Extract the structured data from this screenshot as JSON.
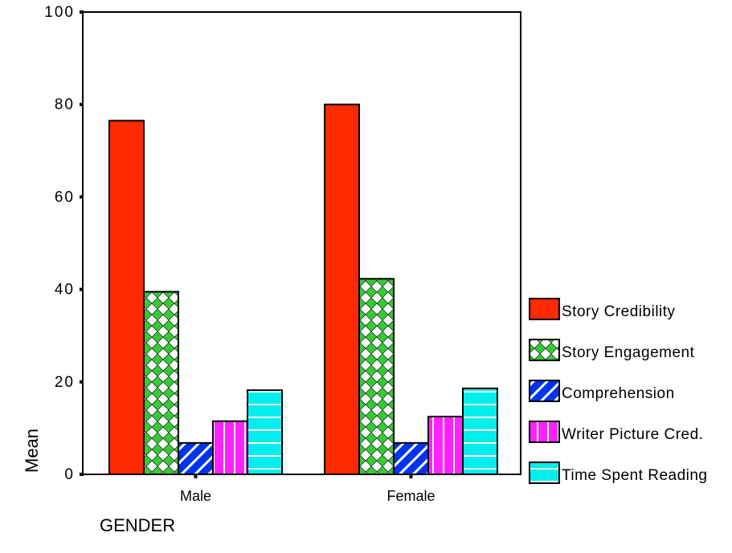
{
  "chart_data": {
    "type": "bar",
    "title": "",
    "xlabel": "GENDER",
    "ylabel": "Mean",
    "ylim": [
      0,
      100
    ],
    "yticks": [
      "0",
      "20",
      "40",
      "60",
      "80",
      "100"
    ],
    "grid": false,
    "legend_position": "right",
    "categories": [
      "Male",
      "Female"
    ],
    "series": [
      {
        "name": "Story Credibility",
        "values": [
          76.5,
          80
        ],
        "color": "#ff2a00",
        "pattern": "solid"
      },
      {
        "name": "Story Engagement",
        "values": [
          39.5,
          42.3
        ],
        "color": "#33cc33",
        "pattern": "crosshatch"
      },
      {
        "name": "Comprehension",
        "values": [
          6.8,
          6.8
        ],
        "color": "#0033ee",
        "pattern": "diagonal-stripes"
      },
      {
        "name": "Writer Picture Cred.",
        "values": [
          11.5,
          12.5
        ],
        "color": "#ff22ff",
        "pattern": "vertical-stripes"
      },
      {
        "name": "Time Spent Reading",
        "values": [
          18.2,
          18.6
        ],
        "color": "#00eeee",
        "pattern": "horizontal-stripes"
      }
    ]
  }
}
